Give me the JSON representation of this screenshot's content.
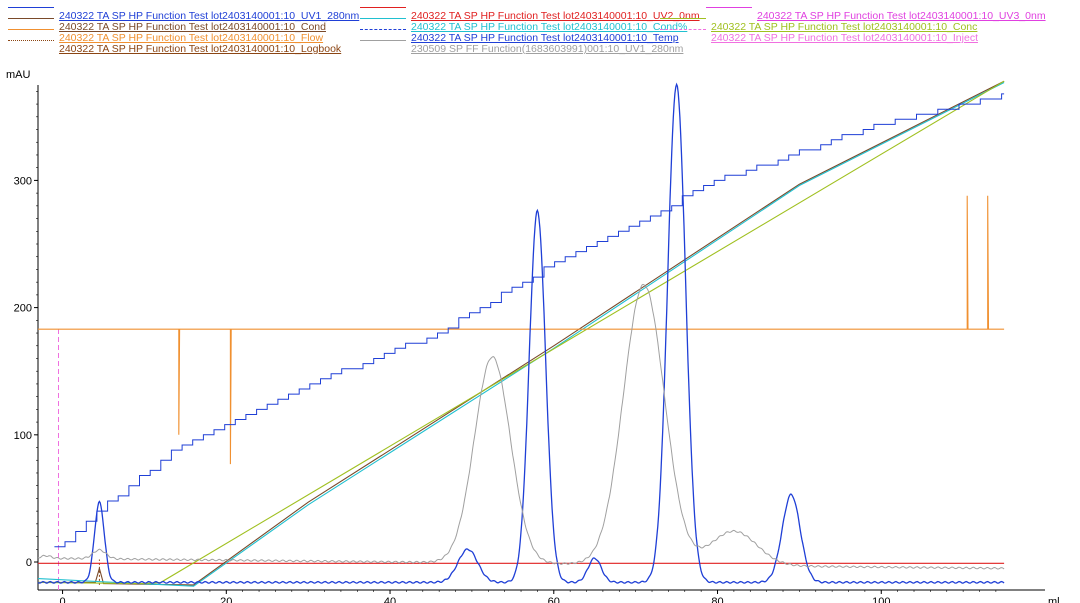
{
  "legend": [
    {
      "label": "240322 TA SP HP Function Test lot2403140001:10_UV1_280nm",
      "color": "#1f3fd6",
      "style": "solid"
    },
    {
      "label": "240322 TA SP HP Function Test lot2403140001:10_UV2_0nm",
      "color": "#e02020",
      "style": "solid"
    },
    {
      "label": "240322 TA SP HP Function Test lot2403140001:10_UV3_0nm",
      "color": "#e040e0",
      "style": "solid"
    },
    {
      "label": "240322 TA SP HP Function Test lot2403140001:10_Cond",
      "color": "#7a4a2a",
      "style": "solid"
    },
    {
      "label": "240322 TA SP HP Function Test lot2403140001:10_Cond%",
      "color": "#20c0d0",
      "style": "solid"
    },
    {
      "label": "240322 TA SP HP Function Test lot2403140001:10_Conc",
      "color": "#a0c020",
      "style": "solid"
    },
    {
      "label": "240322 TA SP HP Function Test lot2403140001:10_Flow",
      "color": "#f09030",
      "style": "solid"
    },
    {
      "label": "240322 TA SP HP Function Test lot2403140001:10_Temp",
      "color": "#1f3fd6",
      "style": "dashed"
    },
    {
      "label": "240322 TA SP HP Function Test lot2403140001:10_Inject",
      "color": "#f070e0",
      "style": "dashed"
    },
    {
      "label": "240322 TA SP HP Function Test lot2403140001:10_Logbook",
      "color": "#8b4513",
      "style": "dotted"
    },
    {
      "label": "230509 SP FF Function(1683603991)001:10_UV1_280nm",
      "color": "#a0a0a0",
      "style": "solid"
    }
  ],
  "chart_data": {
    "type": "line",
    "ylabel": "mAU",
    "xlabel": "ml",
    "xlim": [
      -3,
      120
    ],
    "ylim": [
      -22,
      375
    ],
    "xticks": [
      0,
      20,
      40,
      60,
      80,
      100
    ],
    "yticks": [
      0,
      100,
      200,
      300
    ],
    "grid": false,
    "series": [
      {
        "name": "240322 TA SP HP Function Test lot2403140001:10_UV1_280nm",
        "color": "#1f3fd6",
        "kind": "peaks",
        "baseline_start": -16,
        "baseline_end": -16,
        "peaks": [
          [
            4.5,
            47,
            0.6
          ],
          [
            49.5,
            10,
            1.2
          ],
          [
            58,
            276,
            1.0
          ],
          [
            65,
            3,
            0.8
          ],
          [
            75,
            375,
            1.1
          ],
          [
            89,
            53,
            1.1
          ]
        ]
      },
      {
        "name": "230509 SP FF Function(1683603991)001:10_UV1_280nm",
        "color": "#a0a0a0",
        "kind": "peaks",
        "baseline_start": 3,
        "baseline_end": -5,
        "peaks": [
          [
            -2,
            5,
            0.6
          ],
          [
            4.5,
            10,
            0.8
          ],
          [
            52.5,
            165,
            2.2
          ],
          [
            71,
            223,
            2.5
          ],
          [
            82,
            30,
            2.8
          ]
        ]
      },
      {
        "name": "240322 TA SP HP Function Test lot2403140001:10_UV2_0nm",
        "color": "#e02020",
        "kind": "line",
        "points": [
          [
            -3,
            -1
          ],
          [
            115,
            -1
          ]
        ]
      },
      {
        "name": "240322 TA SP HP Function Test lot2403140001:10_Cond",
        "color": "#7a4a2a",
        "kind": "line",
        "points": [
          [
            -3,
            -16
          ],
          [
            4,
            -16
          ],
          [
            4.5,
            -5
          ],
          [
            5,
            -17
          ],
          [
            16,
            -18
          ],
          [
            30,
            47
          ],
          [
            60,
            170
          ],
          [
            90,
            297
          ],
          [
            115,
            378
          ]
        ]
      },
      {
        "name": "240322 TA SP HP Function Test lot2403140001:10_Cond%",
        "color": "#20c0d0",
        "kind": "line",
        "points": [
          [
            -3,
            -13
          ],
          [
            16,
            -19
          ],
          [
            30,
            45
          ],
          [
            60,
            168
          ],
          [
            90,
            296
          ],
          [
            115,
            377
          ]
        ]
      },
      {
        "name": "240322 TA SP HP Function Test lot2403140001:10_Conc",
        "color": "#a0c020",
        "kind": "line",
        "points": [
          [
            -3,
            -16
          ],
          [
            10,
            -17
          ],
          [
            12,
            -16
          ],
          [
            115,
            378
          ]
        ]
      },
      {
        "name": "240322 TA SP HP Function Test lot2403140001:10_Flow",
        "color": "#f09030",
        "kind": "line",
        "points": [
          [
            -3,
            183
          ],
          [
            14.2,
            183
          ],
          [
            14.2,
            100
          ],
          [
            14.3,
            183
          ],
          [
            20.5,
            183
          ],
          [
            20.5,
            77
          ],
          [
            20.6,
            183
          ],
          [
            110.5,
            183
          ],
          [
            110.5,
            288
          ],
          [
            110.6,
            183
          ],
          [
            113,
            183
          ],
          [
            113,
            288
          ],
          [
            113.1,
            183
          ],
          [
            115,
            183
          ]
        ]
      },
      {
        "name": "240322 TA SP HP Function Test lot2403140001:10_Temp",
        "color": "#1f3fd6",
        "kind": "temp",
        "points": [
          [
            -1,
            10
          ],
          [
            8,
            60
          ],
          [
            15,
            95
          ],
          [
            30,
            140
          ],
          [
            45,
            178
          ],
          [
            60,
            235
          ],
          [
            80,
            300
          ],
          [
            100,
            345
          ],
          [
            115,
            368
          ]
        ]
      },
      {
        "name": "240322 TA SP HP Function Test lot2403140001:10_Inject",
        "color": "#f070e0",
        "kind": "vline",
        "x": -0.5
      },
      {
        "name": "240322 TA SP HP Function Test lot2403140001:10_Logbook",
        "color": "#8b4513",
        "kind": "vline",
        "x": 4.5
      }
    ]
  }
}
